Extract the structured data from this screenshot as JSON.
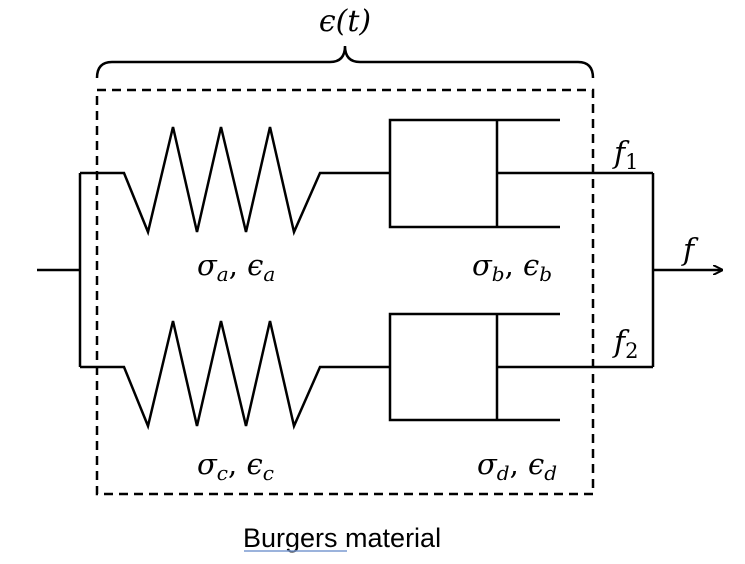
{
  "strain_label": {
    "main": "ϵ",
    "rest": "(t)"
  },
  "element_labels": {
    "a": {
      "s": "σ",
      "ssub": "a",
      "sep": ", ",
      "e": "ϵ",
      "esub": "a"
    },
    "b": {
      "s": "σ",
      "ssub": "b",
      "sep": ", ",
      "e": "ϵ",
      "esub": "b"
    },
    "c": {
      "s": "σ",
      "ssub": "c",
      "sep": ", ",
      "e": "ϵ",
      "esub": "c"
    },
    "d": {
      "s": "σ",
      "ssub": "d",
      "sep": ", ",
      "e": "ϵ",
      "esub": "d"
    }
  },
  "force_labels": {
    "f1": {
      "main": "f",
      "sub": "1"
    },
    "f2": {
      "main": "f",
      "sub": "2"
    },
    "f": {
      "main": "f"
    }
  },
  "caption": "Burgers material"
}
